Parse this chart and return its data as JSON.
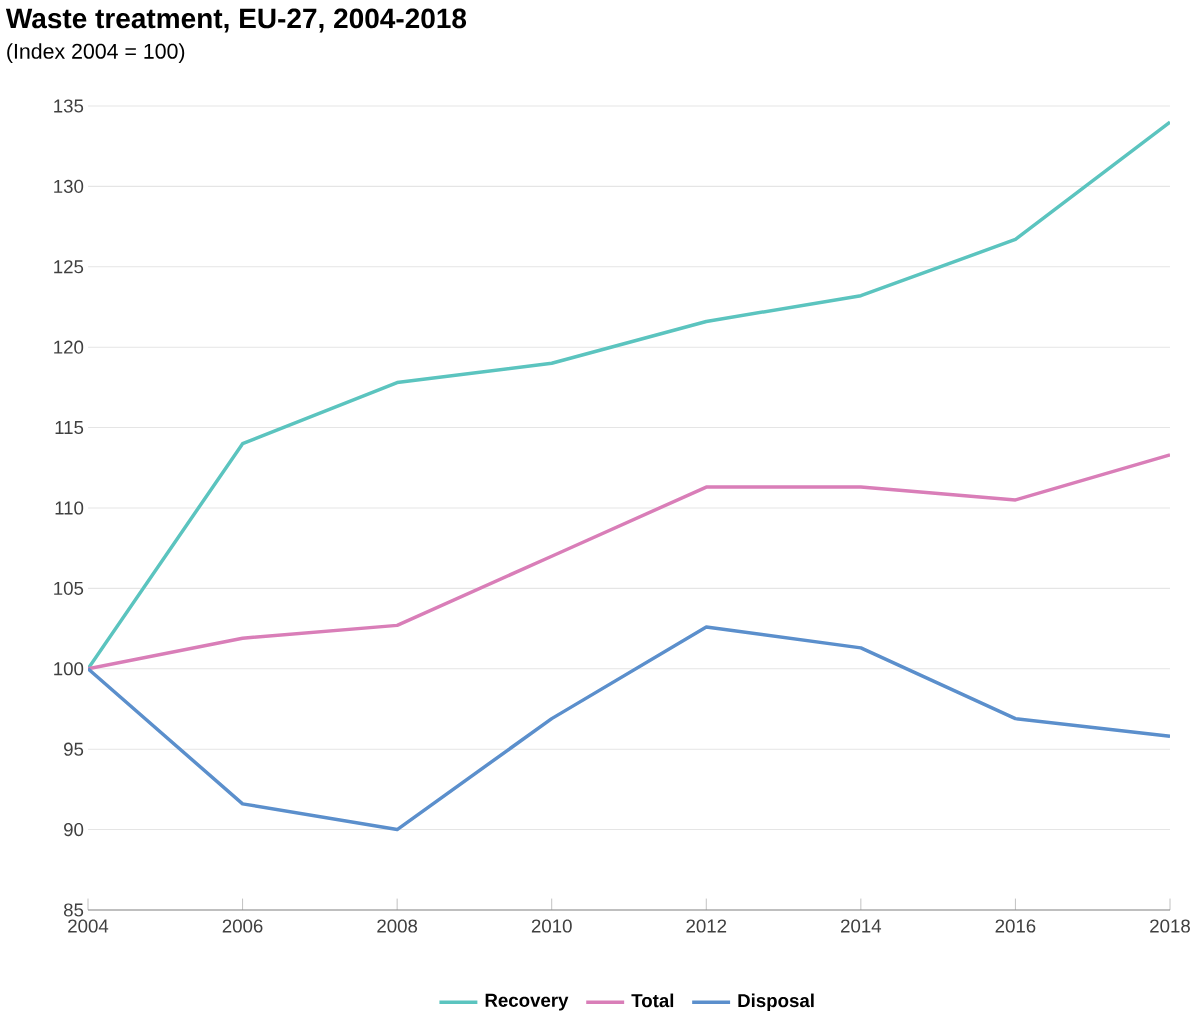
{
  "chart_data": {
    "type": "line",
    "title": "Waste treatment, EU-27, 2004-2018",
    "subtitle": "(Index 2004 = 100)",
    "x": [
      2004,
      2006,
      2008,
      2010,
      2012,
      2014,
      2016,
      2018
    ],
    "series": [
      {
        "name": "Recovery",
        "color": "#5bc4bf",
        "values": [
          100,
          114,
          117.8,
          119,
          121.6,
          123.2,
          126.7,
          134
        ]
      },
      {
        "name": "Total",
        "color": "#d97eb8",
        "values": [
          100,
          101.9,
          102.7,
          107,
          111.3,
          111.3,
          110.5,
          113.3
        ]
      },
      {
        "name": "Disposal",
        "color": "#5b8fcc",
        "values": [
          100,
          91.6,
          90,
          96.9,
          102.6,
          101.3,
          96.9,
          95.8
        ]
      }
    ],
    "xlim": [
      2004,
      2018
    ],
    "ylim": [
      85,
      135
    ],
    "xticks": [
      2004,
      2006,
      2008,
      2010,
      2012,
      2014,
      2016,
      2018
    ],
    "yticks": [
      85,
      90,
      95,
      100,
      105,
      110,
      115,
      120,
      125,
      130,
      135
    ],
    "grid": "y",
    "legend": "bottom",
    "marker": "none",
    "line_style": "solid"
  }
}
